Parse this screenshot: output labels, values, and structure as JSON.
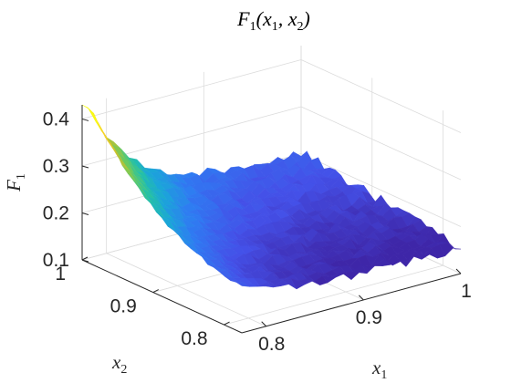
{
  "chart_data": {
    "type": "surface3d",
    "title": {
      "base": "F",
      "sub": "1",
      "args": "(x",
      "arg1sub": "1",
      "sep": ", x",
      "arg2sub": "2",
      "close": ")"
    },
    "xlabel": {
      "base": "x",
      "sub": "1"
    },
    "ylabel": {
      "base": "x",
      "sub": "2"
    },
    "zlabel": {
      "base": "F",
      "sub": "1"
    },
    "xlim": [
      0.775,
      1.0
    ],
    "ylim": [
      0.775,
      1.0
    ],
    "zlim": [
      0.1,
      0.43
    ],
    "xticks": [
      {
        "v": 0.8,
        "label": "0.8"
      },
      {
        "v": 0.9,
        "label": "0.9"
      },
      {
        "v": 1.0,
        "label": "1"
      }
    ],
    "yticks": [
      {
        "v": 0.8,
        "label": "0.8"
      },
      {
        "v": 0.9,
        "label": "0.9"
      },
      {
        "v": 1.0,
        "label": "1"
      }
    ],
    "zticks": [
      {
        "v": 0.1,
        "label": "0.1"
      },
      {
        "v": 0.2,
        "label": "0.2"
      },
      {
        "v": 0.3,
        "label": "0.3"
      },
      {
        "v": 0.4,
        "label": "0.4"
      }
    ],
    "grid": true,
    "colormap": "parula",
    "colormap_stops": [
      "#3e26a8",
      "#4450e8",
      "#2f7bf2",
      "#1ba5d9",
      "#23c0a8",
      "#6ccb5e",
      "#c4c02f",
      "#f9d22a",
      "#f9fb15"
    ],
    "surface": {
      "description_points": [
        {
          "x1": 0.775,
          "x2": 1.0,
          "F1": 0.415
        },
        {
          "x1": 0.775,
          "x2": 0.9,
          "F1": 0.3
        },
        {
          "x1": 0.775,
          "x2": 0.8,
          "F1": 0.22
        },
        {
          "x1": 0.85,
          "x2": 0.775,
          "F1": 0.17
        },
        {
          "x1": 0.9,
          "x2": 0.85,
          "F1": 0.16
        },
        {
          "x1": 1.0,
          "x2": 0.775,
          "F1": 0.16
        },
        {
          "x1": 1.0,
          "x2": 1.0,
          "F1": 0.21
        },
        {
          "x1": 0.9,
          "x2": 1.0,
          "F1": 0.24
        }
      ]
    }
  }
}
